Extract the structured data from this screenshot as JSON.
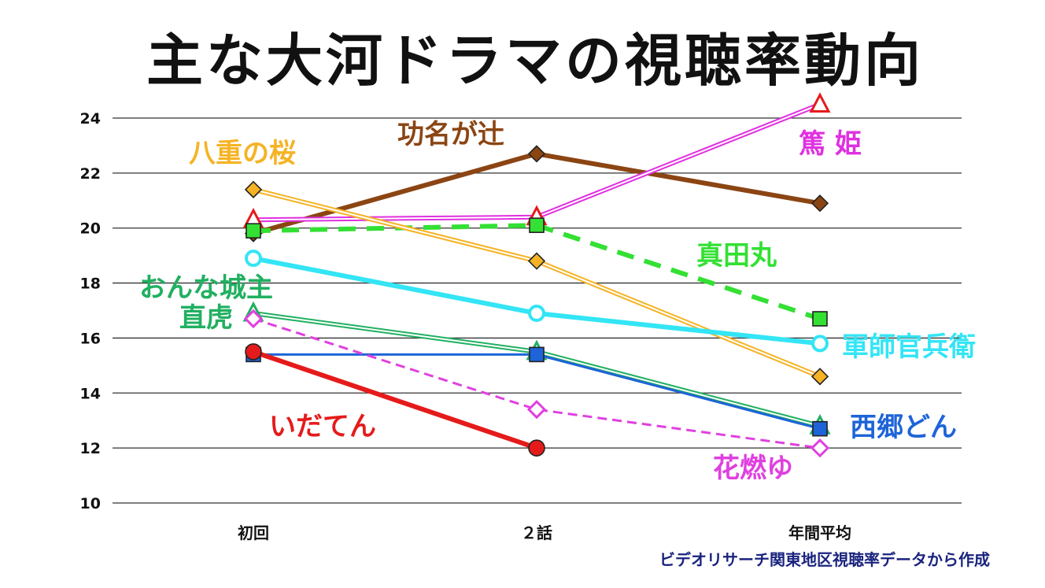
{
  "chart_data": {
    "type": "line",
    "title": "主な大河ドラマの視聴率動向",
    "categories": [
      "初回",
      "２話",
      "年間平均"
    ],
    "ylim": [
      10,
      24
    ],
    "yticks": [
      10,
      12,
      14,
      16,
      18,
      20,
      22,
      24
    ],
    "grid": true,
    "source_note": "ビデオリサーチ関東地区視聴率データから作成",
    "series": [
      {
        "name": "功名が辻",
        "values": [
          19.8,
          22.7,
          20.9
        ],
        "color": "#8b4513",
        "marker": "diamond",
        "line": "solid-thick"
      },
      {
        "name": "篤 姫",
        "values": [
          20.3,
          20.4,
          24.5
        ],
        "color": "#e030e0",
        "marker": "triangle",
        "marker_color": "#e51b1b",
        "line": "double"
      },
      {
        "name": "真田丸",
        "values": [
          19.9,
          20.1,
          16.7
        ],
        "color": "#33e033",
        "marker": "square",
        "line": "dashed-thick"
      },
      {
        "name": "八重の桜",
        "values": [
          21.4,
          18.8,
          14.6
        ],
        "color": "#f5b324",
        "marker": "diamond",
        "line": "double"
      },
      {
        "name": "軍師官兵衛",
        "values": [
          18.9,
          16.9,
          15.8
        ],
        "color": "#33e5f5",
        "marker": "circle-open",
        "line": "solid-thick"
      },
      {
        "name": "おんな城主\n直虎",
        "values": [
          16.9,
          15.5,
          12.8
        ],
        "color": "#20b060",
        "marker": "triangle",
        "line": "double"
      },
      {
        "name": "西郷どん",
        "values": [
          15.4,
          15.4,
          12.7
        ],
        "color": "#1e64d8",
        "marker": "square",
        "line": "solid-thin"
      },
      {
        "name": "花燃ゆ",
        "values": [
          16.7,
          13.4,
          12.0
        ],
        "color": "#e040e0",
        "marker": "diamond-open",
        "line": "dashed-thin"
      },
      {
        "name": "いだてん",
        "values": [
          15.5,
          12.0,
          null
        ],
        "color": "#e51b1b",
        "marker": "circle",
        "line": "solid-thick"
      }
    ]
  }
}
